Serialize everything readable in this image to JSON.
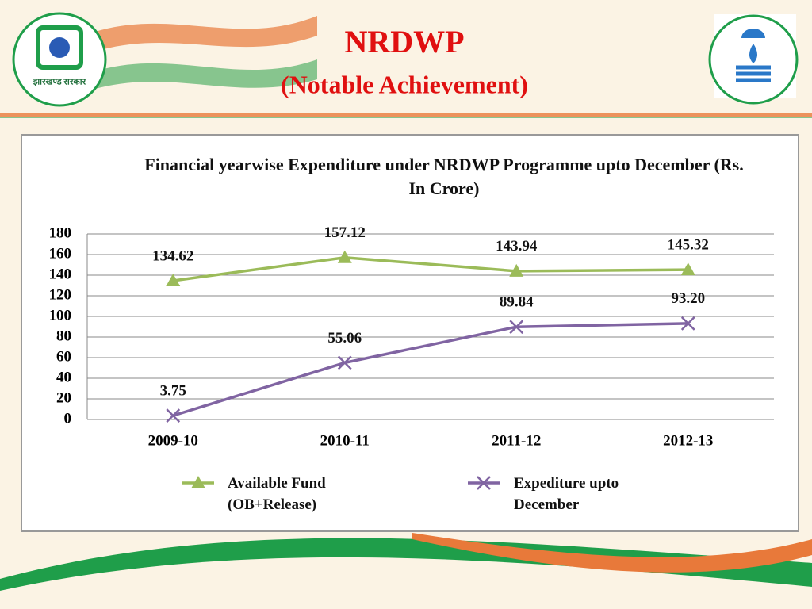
{
  "header": {
    "title": "NRDWP",
    "subtitle": "(Notable Achievement)",
    "logo_text": "झारखण्ड सरकार"
  },
  "chart_data": {
    "type": "line",
    "title": "Financial yearwise Expenditure under NRDWP Programme upto December (Rs. In Crore)",
    "categories": [
      "2009-10",
      "2010-11",
      "2011-12",
      "2012-13"
    ],
    "series": [
      {
        "name": "Available Fund (OB+Release)",
        "color": "#9bbb59",
        "marker": "triangle",
        "values": [
          134.62,
          157.12,
          143.94,
          145.32
        ]
      },
      {
        "name": "Expediture upto December",
        "color": "#8064a2",
        "marker": "x",
        "values": [
          3.75,
          55.06,
          89.84,
          93.2
        ],
        "value_labels": [
          "3.75",
          "55.06",
          "89.84",
          "93.20"
        ]
      }
    ],
    "ylim": [
      0,
      180
    ],
    "yticks": [
      0,
      20,
      40,
      60,
      80,
      100,
      120,
      140,
      160,
      180
    ],
    "grid": true,
    "legend": "bottom"
  }
}
